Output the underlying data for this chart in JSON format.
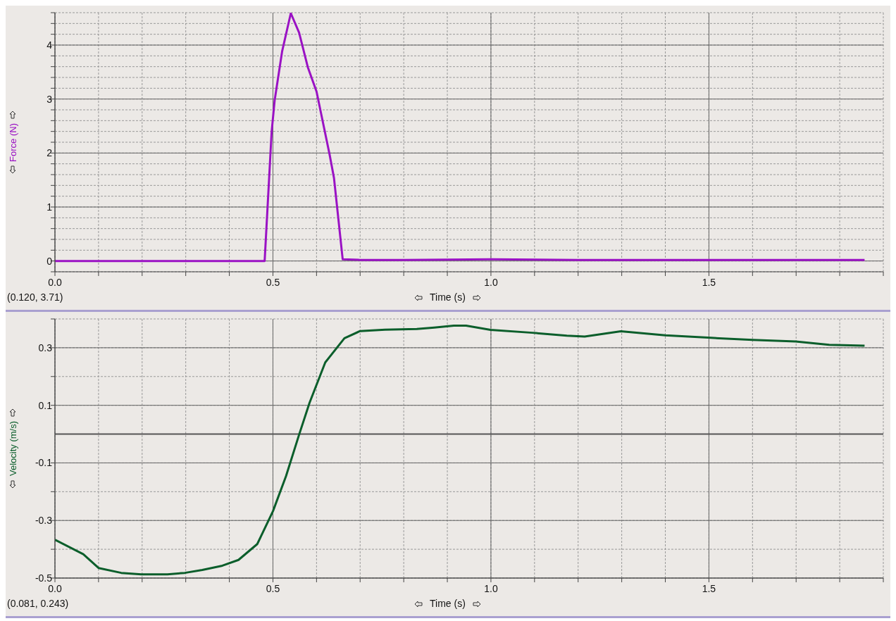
{
  "chart_data": [
    {
      "type": "line",
      "ylabel": "Force (N)",
      "xlabel": "Time (s)",
      "annotations": [
        "(0.120, 3.71)"
      ],
      "xlim": [
        0,
        1.9
      ],
      "xticks": [
        {
          "value": 0,
          "label": "0.0"
        },
        {
          "value": 0.1,
          "label": null
        },
        {
          "value": 0.2,
          "label": null
        },
        {
          "value": 0.3,
          "label": null
        },
        {
          "value": 0.4,
          "label": null
        },
        {
          "value": 0.5,
          "label": "0.5"
        },
        {
          "value": 0.6,
          "label": null
        },
        {
          "value": 0.7,
          "label": null
        },
        {
          "value": 0.8,
          "label": null
        },
        {
          "value": 0.9,
          "label": null
        },
        {
          "value": 1,
          "label": "1.0"
        },
        {
          "value": 1.1,
          "label": null
        },
        {
          "value": 1.2,
          "label": null
        },
        {
          "value": 1.3,
          "label": null
        },
        {
          "value": 1.4,
          "label": null
        },
        {
          "value": 1.5,
          "label": "1.5"
        },
        {
          "value": 1.6,
          "label": null
        },
        {
          "value": 1.7,
          "label": null
        },
        {
          "value": 1.8,
          "label": null
        },
        {
          "value": 1.9,
          "label": null
        }
      ],
      "ylim": [
        -0.2,
        4.6
      ],
      "yticks": [
        {
          "value": -0.2,
          "label": null
        },
        0,
        {
          "value": 0.2,
          "label": null
        },
        {
          "value": 0.4,
          "label": null
        },
        {
          "value": 0.6,
          "label": null
        },
        {
          "value": 0.8,
          "label": null
        },
        1,
        {
          "value": 1.2,
          "label": null
        },
        {
          "value": 1.4,
          "label": null
        },
        {
          "value": 1.6,
          "label": null
        },
        {
          "value": 1.8,
          "label": null
        },
        2,
        {
          "value": 2.2,
          "label": null
        },
        {
          "value": 2.4,
          "label": null
        },
        {
          "value": 2.6,
          "label": null
        },
        {
          "value": 2.8,
          "label": null
        },
        3,
        {
          "value": 3.2,
          "label": null
        },
        {
          "value": 3.4,
          "label": null
        },
        {
          "value": 3.6,
          "label": null
        },
        {
          "value": 3.8,
          "label": null
        },
        4,
        {
          "value": 4.2,
          "label": null
        },
        {
          "value": 4.4,
          "label": null
        },
        {
          "value": 4.6,
          "label": null
        }
      ],
      "grid": true,
      "series": [
        {
          "color": "#9a12c4",
          "x": [
            0,
            0.1,
            0.2,
            0.3,
            0.4,
            0.481,
            0.497,
            0.504,
            0.521,
            0.541,
            0.56,
            0.58,
            0.6,
            0.63,
            0.64,
            0.66,
            0.7,
            0.8,
            1.0,
            1.2,
            1.5,
            1.7,
            1.857
          ],
          "values": [
            0,
            0,
            0,
            0,
            0,
            0,
            2.39,
            2.98,
            3.88,
            4.59,
            4.23,
            3.59,
            3.14,
            1.97,
            1.54,
            0.03,
            0.02,
            0.02,
            0.03,
            0.02,
            0.02,
            0.02,
            0.02
          ]
        }
      ]
    },
    {
      "type": "line",
      "ylabel": "Velocity (m/s)",
      "xlabel": "Time (s)",
      "annotations": [
        "(0.081, 0.243)"
      ],
      "xlim": [
        0,
        1.9
      ],
      "xticks": [
        {
          "value": 0,
          "label": "0.0"
        },
        {
          "value": 0.1,
          "label": null
        },
        {
          "value": 0.2,
          "label": null
        },
        {
          "value": 0.3,
          "label": null
        },
        {
          "value": 0.4,
          "label": null
        },
        {
          "value": 0.5,
          "label": "0.5"
        },
        {
          "value": 0.6,
          "label": null
        },
        {
          "value": 0.7,
          "label": null
        },
        {
          "value": 0.8,
          "label": null
        },
        {
          "value": 0.9,
          "label": null
        },
        {
          "value": 1,
          "label": "1.0"
        },
        {
          "value": 1.1,
          "label": null
        },
        {
          "value": 1.2,
          "label": null
        },
        {
          "value": 1.3,
          "label": null
        },
        {
          "value": 1.4,
          "label": null
        },
        {
          "value": 1.5,
          "label": "1.5"
        },
        {
          "value": 1.6,
          "label": null
        },
        {
          "value": 1.7,
          "label": null
        },
        {
          "value": 1.8,
          "label": null
        },
        {
          "value": 1.9,
          "label": null
        }
      ],
      "ylim": [
        -0.5,
        0.4
      ],
      "yticks": [
        -0.5,
        {
          "value": -0.4,
          "label": null
        },
        -0.3,
        {
          "value": -0.2,
          "label": null
        },
        -0.1,
        0.1,
        {
          "value": 0.2,
          "label": null
        },
        0.3,
        {
          "value": 0.4,
          "label": null
        }
      ],
      "grid": true,
      "ref_lines": [
        {
          "axis": "y",
          "value": 0,
          "label": null
        }
      ],
      "series": [
        {
          "color": "#0b5e2b",
          "x": [
            0,
            0.065,
            0.1,
            0.152,
            0.198,
            0.258,
            0.298,
            0.338,
            0.384,
            0.421,
            0.464,
            0.5,
            0.53,
            0.56,
            0.584,
            0.62,
            0.664,
            0.7,
            0.757,
            0.83,
            0.87,
            0.915,
            0.943,
            0.999,
            1.095,
            1.174,
            1.215,
            1.298,
            1.4,
            1.498,
            1.6,
            1.699,
            1.776,
            1.857
          ],
          "values": [
            -0.367,
            -0.417,
            -0.465,
            -0.482,
            -0.487,
            -0.487,
            -0.482,
            -0.472,
            -0.457,
            -0.437,
            -0.382,
            -0.268,
            -0.146,
            -0.002,
            0.109,
            0.249,
            0.333,
            0.358,
            0.363,
            0.365,
            0.37,
            0.377,
            0.377,
            0.362,
            0.352,
            0.342,
            0.339,
            0.357,
            0.343,
            0.335,
            0.327,
            0.322,
            0.31,
            0.307
          ]
        }
      ]
    }
  ]
}
